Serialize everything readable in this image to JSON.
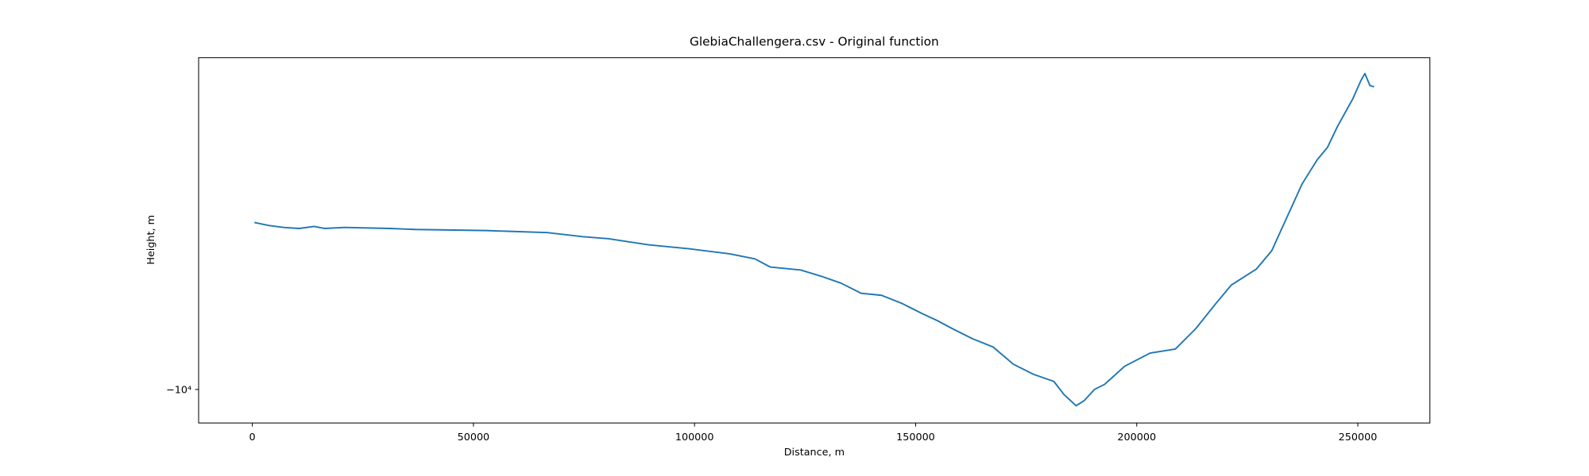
{
  "chart_data": {
    "type": "line",
    "title": "GlebiaChallengera.csv - Original function",
    "xlabel": "Distance, m",
    "ylabel": "Height, m",
    "yscale": "symlog",
    "xlim": [
      -12150,
      266300
    ],
    "ylim": [
      -11700,
      -2110
    ],
    "xticks": [
      0,
      50000,
      100000,
      150000,
      200000,
      250000
    ],
    "yticks": [
      {
        "value": -10000,
        "label": "−10⁴"
      }
    ],
    "series": [
      {
        "name": "Height",
        "color": "#1f77b4",
        "x": [
          458,
          3667,
          7104,
          10541,
          13978,
          16270,
          20852,
          31164,
          36893,
          52933,
          66682,
          74702,
          80431,
          89597,
          98763,
          107928,
          113657,
          117094,
          123969,
          128552,
          133135,
          137718,
          142301,
          146884,
          151467,
          154904,
          158341,
          162924,
          167507,
          172090,
          176673,
          181256,
          183547,
          186297,
          188130,
          190422,
          192713,
          197296,
          203025,
          208753,
          213336,
          217919,
          221357,
          227085,
          230522,
          233960,
          237397,
          240834,
          243126,
          245417,
          248854,
          250688,
          251604,
          252750,
          253666
        ],
        "values": [
          -4570,
          -4634,
          -4677,
          -4700,
          -4656,
          -4700,
          -4677,
          -4700,
          -4722,
          -4746,
          -4791,
          -4884,
          -4930,
          -5073,
          -5170,
          -5293,
          -5420,
          -5630,
          -5710,
          -5876,
          -6074,
          -6370,
          -6430,
          -6678,
          -7004,
          -7240,
          -7521,
          -7886,
          -8192,
          -8881,
          -9314,
          -9627,
          -10240,
          -10790,
          -10536,
          -10000,
          -9765,
          -8965,
          -8431,
          -8272,
          -7521,
          -6678,
          -6132,
          -5683,
          -5218,
          -4462,
          -3814,
          -3404,
          -3215,
          -2911,
          -2560,
          -2350,
          -2273,
          -2406,
          -2418
        ]
      }
    ]
  }
}
